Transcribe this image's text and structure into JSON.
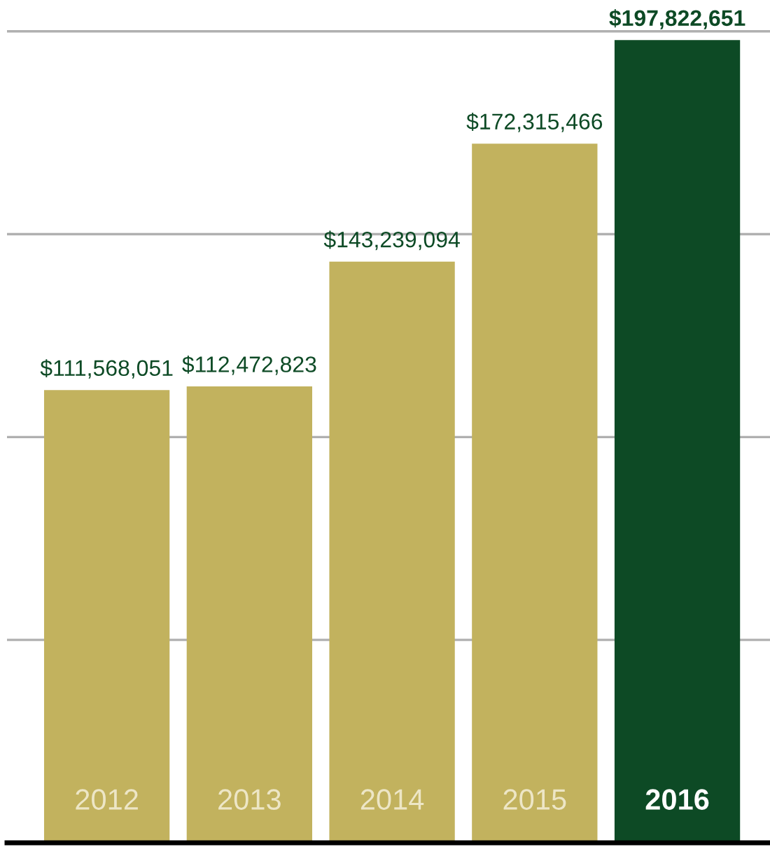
{
  "chart_data": {
    "type": "bar",
    "categories": [
      "2012",
      "2013",
      "2014",
      "2015",
      "2016"
    ],
    "values": [
      111568051,
      112472823,
      143239094,
      172315466,
      197822651
    ],
    "colors": [
      "#c2b25e",
      "#c2b25e",
      "#c2b25e",
      "#c2b25e",
      "#0d4a25"
    ],
    "value_labels": [
      "$111,568,051",
      "$112,472,823",
      "$143,239,094",
      "$172,315,466",
      "$197,822,651"
    ],
    "yticks": [
      {
        "value": 0,
        "label": null
      },
      {
        "value": 50000000,
        "label": null
      },
      {
        "value": 100000000,
        "label": null
      },
      {
        "value": 150000000,
        "label": null
      },
      {
        "value": 200000000,
        "label": null
      }
    ],
    "grid": "y",
    "legend": false
  }
}
